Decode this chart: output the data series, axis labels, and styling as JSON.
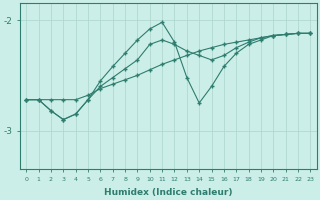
{
  "xlabel": "Humidex (Indice chaleur)",
  "bg_color": "#cceee8",
  "line_color": "#2e7d6e",
  "grid_color_x": "#aad4cc",
  "grid_color_y": "#aad4cc",
  "xlim": [
    -0.5,
    23.5
  ],
  "ylim": [
    -3.35,
    -1.85
  ],
  "yticks": [
    -3,
    -2
  ],
  "xticks": [
    0,
    1,
    2,
    3,
    4,
    5,
    6,
    7,
    8,
    9,
    10,
    11,
    12,
    13,
    14,
    15,
    16,
    17,
    18,
    19,
    20,
    21,
    22,
    23
  ],
  "series1_x": [
    0,
    1,
    2,
    3,
    4,
    5,
    6,
    7,
    8,
    9,
    10,
    11,
    12,
    13,
    14,
    15,
    16,
    17,
    18,
    19,
    20,
    21,
    22,
    23
  ],
  "series1_y": [
    -2.72,
    -2.72,
    -2.72,
    -2.72,
    -2.72,
    -2.68,
    -2.62,
    -2.58,
    -2.54,
    -2.5,
    -2.45,
    -2.4,
    -2.36,
    -2.32,
    -2.28,
    -2.25,
    -2.22,
    -2.2,
    -2.18,
    -2.16,
    -2.14,
    -2.13,
    -2.12,
    -2.12
  ],
  "series2_x": [
    0,
    1,
    2,
    3,
    4,
    5,
    6,
    7,
    8,
    9,
    10,
    11,
    12,
    13,
    14,
    15,
    16,
    17,
    18,
    19,
    20,
    21,
    22,
    23
  ],
  "series2_y": [
    -2.72,
    -2.72,
    -2.82,
    -2.9,
    -2.85,
    -2.72,
    -2.55,
    -2.42,
    -2.3,
    -2.18,
    -2.08,
    -2.02,
    -2.2,
    -2.52,
    -2.75,
    -2.6,
    -2.42,
    -2.3,
    -2.22,
    -2.18,
    -2.14,
    -2.13,
    -2.12,
    -2.12
  ],
  "series3_x": [
    0,
    1,
    2,
    3,
    4,
    5,
    6,
    7,
    8,
    9,
    10,
    11,
    12,
    13,
    14,
    15,
    16,
    17,
    18,
    19,
    20,
    21,
    22,
    23
  ],
  "series3_y": [
    -2.72,
    -2.72,
    -2.82,
    -2.9,
    -2.85,
    -2.72,
    -2.6,
    -2.52,
    -2.44,
    -2.36,
    -2.22,
    -2.18,
    -2.22,
    -2.28,
    -2.32,
    -2.36,
    -2.32,
    -2.25,
    -2.2,
    -2.16,
    -2.14,
    -2.13,
    -2.12,
    -2.12
  ]
}
